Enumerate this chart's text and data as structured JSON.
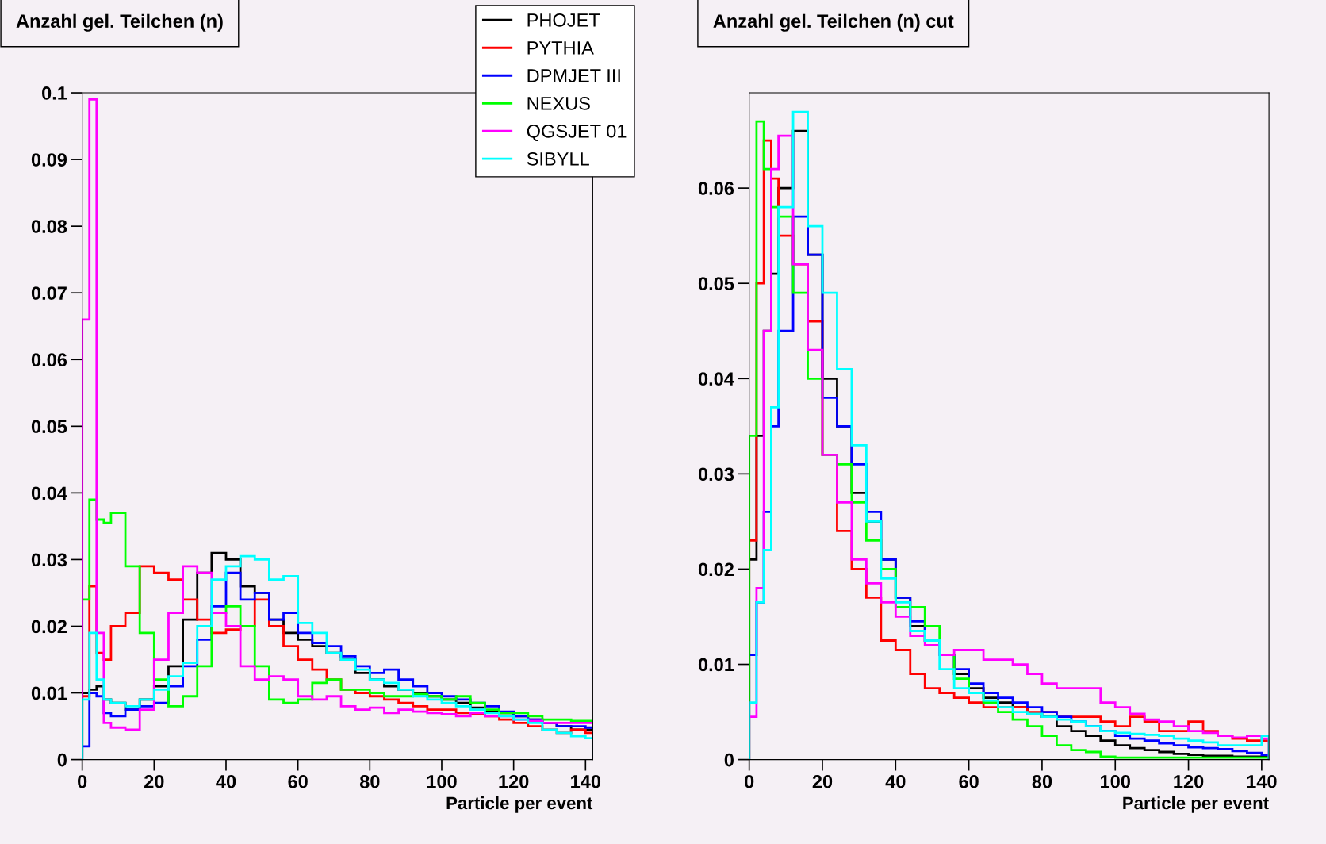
{
  "chart_data": [
    {
      "type": "histogram",
      "title": "Anzahl gel. Teilchen (n)",
      "xlabel": "Particle per event",
      "legend": "top right",
      "grid": false,
      "bins": [
        0,
        2,
        4,
        6,
        8,
        12,
        16,
        20,
        24,
        28,
        32,
        36,
        40,
        44,
        48,
        52,
        56,
        60,
        64,
        68,
        72,
        76,
        80,
        84,
        88,
        92,
        96,
        100,
        104,
        108,
        112,
        116,
        120,
        124,
        128,
        132,
        136,
        140,
        142
      ],
      "xlim": [
        0,
        142
      ],
      "xticks": [
        0,
        20,
        40,
        60,
        80,
        100,
        120,
        140
      ],
      "ylim": [
        0,
        0.1
      ],
      "yticks": [
        0,
        0.01,
        0.02,
        0.03,
        0.04,
        0.05,
        0.06,
        0.07,
        0.08,
        0.09,
        0.1
      ],
      "series": [
        {
          "name": "PHOJET",
          "color": "#000000",
          "values": [
            0.01,
            0.0105,
            0.011,
            0.009,
            0.0085,
            0.0075,
            0.009,
            0.011,
            0.014,
            0.021,
            0.028,
            0.031,
            0.03,
            0.026,
            0.025,
            0.021,
            0.019,
            0.018,
            0.017,
            0.016,
            0.015,
            0.013,
            0.012,
            0.011,
            0.0105,
            0.01,
            0.0095,
            0.009,
            0.0085,
            0.0078,
            0.0072,
            0.007,
            0.0065,
            0.006,
            0.0055,
            0.005,
            0.0045,
            0.0045
          ]
        },
        {
          "name": "PYTHIA",
          "color": "#ff0000",
          "values": [
            0.0095,
            0.026,
            0.016,
            0.015,
            0.02,
            0.022,
            0.029,
            0.028,
            0.027,
            0.024,
            0.021,
            0.019,
            0.0195,
            0.02,
            0.024,
            0.02,
            0.017,
            0.015,
            0.0135,
            0.012,
            0.0105,
            0.01,
            0.0095,
            0.009,
            0.0085,
            0.008,
            0.0075,
            0.0075,
            0.007,
            0.0068,
            0.0065,
            0.006,
            0.0055,
            0.005,
            0.0045,
            0.004,
            0.0045,
            0.004
          ]
        },
        {
          "name": "DPMJET III",
          "color": "#0000ff",
          "values": [
            0.002,
            0.01,
            0.0095,
            0.007,
            0.0065,
            0.0075,
            0.008,
            0.0085,
            0.011,
            0.014,
            0.018,
            0.023,
            0.028,
            0.024,
            0.025,
            0.021,
            0.022,
            0.019,
            0.0175,
            0.017,
            0.0155,
            0.014,
            0.013,
            0.0135,
            0.012,
            0.011,
            0.01,
            0.0095,
            0.009,
            0.0085,
            0.008,
            0.0072,
            0.0065,
            0.006,
            0.0055,
            0.005,
            0.005,
            0.0048
          ]
        },
        {
          "name": "NEXUS",
          "color": "#00ff00",
          "values": [
            0.024,
            0.039,
            0.036,
            0.0355,
            0.037,
            0.029,
            0.019,
            0.012,
            0.008,
            0.0095,
            0.014,
            0.022,
            0.023,
            0.02,
            0.014,
            0.009,
            0.0085,
            0.009,
            0.0115,
            0.012,
            0.0105,
            0.0105,
            0.01,
            0.0095,
            0.0095,
            0.0098,
            0.0095,
            0.009,
            0.0095,
            0.0085,
            0.0075,
            0.007,
            0.007,
            0.0065,
            0.006,
            0.006,
            0.0058,
            0.0058
          ]
        },
        {
          "name": "QGSJET 01",
          "color": "#ff00ff",
          "values": [
            0.066,
            0.099,
            0.019,
            0.0055,
            0.0048,
            0.0045,
            0.0075,
            0.015,
            0.022,
            0.029,
            0.028,
            0.022,
            0.02,
            0.014,
            0.012,
            0.0125,
            0.012,
            0.0095,
            0.009,
            0.0095,
            0.008,
            0.0075,
            0.0078,
            0.007,
            0.0075,
            0.0072,
            0.007,
            0.0068,
            0.0065,
            0.007,
            0.0065,
            0.0065,
            0.006,
            0.0058,
            0.0055,
            0.0055,
            0.0055,
            0.0055
          ]
        },
        {
          "name": "SIBYLL",
          "color": "#00ffff",
          "values": [
            0.009,
            0.019,
            0.012,
            0.009,
            0.0085,
            0.008,
            0.009,
            0.0105,
            0.0125,
            0.0145,
            0.02,
            0.027,
            0.029,
            0.0305,
            0.03,
            0.027,
            0.0275,
            0.0205,
            0.019,
            0.016,
            0.015,
            0.0135,
            0.012,
            0.0115,
            0.0105,
            0.0095,
            0.009,
            0.0085,
            0.008,
            0.0075,
            0.007,
            0.0065,
            0.006,
            0.0055,
            0.0045,
            0.004,
            0.0035,
            0.0032
          ]
        }
      ]
    },
    {
      "type": "histogram",
      "title": "Anzahl gel. Teilchen (n) cut",
      "xlabel": "Particle per event",
      "legend": false,
      "grid": false,
      "bins": [
        0,
        2,
        4,
        6,
        8,
        12,
        16,
        20,
        24,
        28,
        32,
        36,
        40,
        44,
        48,
        52,
        56,
        60,
        64,
        68,
        72,
        76,
        80,
        84,
        88,
        92,
        96,
        100,
        104,
        108,
        112,
        116,
        120,
        124,
        128,
        132,
        136,
        140,
        142
      ],
      "xlim": [
        0,
        142
      ],
      "xticks": [
        0,
        20,
        40,
        60,
        80,
        100,
        120,
        140
      ],
      "ylim": [
        0,
        0.07
      ],
      "yticks": [
        0,
        0.01,
        0.02,
        0.03,
        0.04,
        0.05,
        0.06
      ],
      "series": [
        {
          "color": "#000000",
          "values": [
            0.021,
            0.034,
            0.045,
            0.051,
            0.06,
            0.066,
            0.053,
            0.04,
            0.035,
            0.028,
            0.025,
            0.021,
            0.017,
            0.014,
            0.0125,
            0.011,
            0.009,
            0.0075,
            0.0065,
            0.006,
            0.0055,
            0.0048,
            0.0045,
            0.0035,
            0.003,
            0.0025,
            0.002,
            0.0015,
            0.0012,
            0.001,
            0.0008,
            0.0006,
            0.0005,
            0.0004,
            0.0004,
            0.0003,
            0.0003,
            0.0003
          ]
        },
        {
          "color": "#ff0000",
          "values": [
            0.023,
            0.05,
            0.065,
            0.061,
            0.055,
            0.052,
            0.046,
            0.032,
            0.024,
            0.02,
            0.017,
            0.0125,
            0.0115,
            0.009,
            0.0075,
            0.007,
            0.0065,
            0.006,
            0.0055,
            0.0055,
            0.0055,
            0.005,
            0.005,
            0.0045,
            0.0045,
            0.0045,
            0.004,
            0.0035,
            0.0045,
            0.004,
            0.003,
            0.003,
            0.004,
            0.003,
            0.0025,
            0.0022,
            0.002,
            0.002
          ]
        },
        {
          "color": "#0000ff",
          "values": [
            0.011,
            0.0165,
            0.026,
            0.035,
            0.045,
            0.057,
            0.053,
            0.038,
            0.035,
            0.031,
            0.026,
            0.021,
            0.017,
            0.0145,
            0.0125,
            0.011,
            0.0095,
            0.008,
            0.007,
            0.0065,
            0.006,
            0.0055,
            0.005,
            0.0045,
            0.004,
            0.0035,
            0.003,
            0.0025,
            0.0022,
            0.002,
            0.0017,
            0.0015,
            0.0013,
            0.0012,
            0.0011,
            0.0009,
            0.0007,
            0.0005
          ]
        },
        {
          "color": "#00ff00",
          "values": [
            0.034,
            0.067,
            0.062,
            0.058,
            0.057,
            0.049,
            0.04,
            0.032,
            0.031,
            0.027,
            0.023,
            0.02,
            0.016,
            0.016,
            0.014,
            0.011,
            0.0085,
            0.007,
            0.006,
            0.005,
            0.0042,
            0.0035,
            0.0025,
            0.0015,
            0.001,
            0.0008,
            0.0003,
            0.0002,
            0.0002,
            0.0002,
            0.0002,
            0.0002,
            0.0002,
            0.0002,
            0.0002,
            0.0002,
            0.0002,
            0.0002
          ]
        },
        {
          "color": "#ff00ff",
          "values": [
            0.0045,
            0.018,
            0.045,
            0.062,
            0.0655,
            0.052,
            0.043,
            0.032,
            0.027,
            0.021,
            0.0185,
            0.0165,
            0.015,
            0.013,
            0.012,
            0.011,
            0.0115,
            0.0115,
            0.0105,
            0.0105,
            0.01,
            0.009,
            0.008,
            0.0075,
            0.0075,
            0.0075,
            0.006,
            0.0055,
            0.0048,
            0.0042,
            0.004,
            0.0035,
            0.003,
            0.0028,
            0.0025,
            0.0023,
            0.0025,
            0.0022
          ]
        },
        {
          "color": "#00ffff",
          "values": [
            0.006,
            0.0165,
            0.022,
            0.037,
            0.058,
            0.068,
            0.056,
            0.049,
            0.041,
            0.033,
            0.025,
            0.019,
            0.0165,
            0.0135,
            0.0125,
            0.0095,
            0.0075,
            0.007,
            0.0062,
            0.0055,
            0.005,
            0.0048,
            0.0045,
            0.0042,
            0.004,
            0.0035,
            0.003,
            0.0028,
            0.0027,
            0.0026,
            0.0025,
            0.0022,
            0.002,
            0.0018,
            0.0015,
            0.0015,
            0.0015,
            0.0025
          ]
        }
      ]
    }
  ]
}
